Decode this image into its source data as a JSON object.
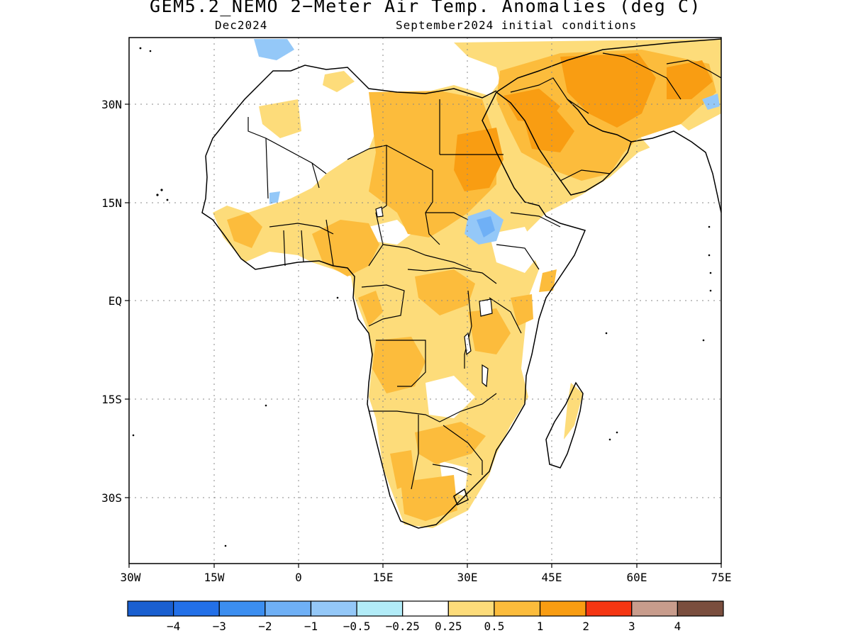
{
  "title": "GEM5.2_NEMO 2−Meter Air Temp. Anomalies (deg C)",
  "subtitle_left": "Dec2024",
  "subtitle_right": "September2024 initial conditions",
  "map": {
    "region": "Africa and Middle East",
    "lon_range": [
      -30,
      75
    ],
    "lat_range": [
      -41,
      40
    ],
    "lat_ticks": [
      "30N",
      "15N",
      "EQ",
      "15S",
      "30S"
    ],
    "lon_ticks": [
      "30W",
      "15W",
      "0",
      "15E",
      "30E",
      "45E",
      "60E",
      "75E"
    ],
    "gridlines": "dotted"
  },
  "colorbar": {
    "colors": [
      "#1a5fd0",
      "#2370e8",
      "#3c8ef0",
      "#6fb0f6",
      "#94c8f8",
      "#b2ecf8",
      "#ffffff",
      "#fddc7a",
      "#fcbc3c",
      "#f99d12",
      "#f53612",
      "#c89c8c",
      "#7a4e3e"
    ],
    "labels": [
      "−4",
      "−3",
      "−2",
      "−1",
      "−0.5",
      "−0.25",
      "0.25",
      "0.5",
      "1",
      "2",
      "3",
      "4"
    ]
  }
}
